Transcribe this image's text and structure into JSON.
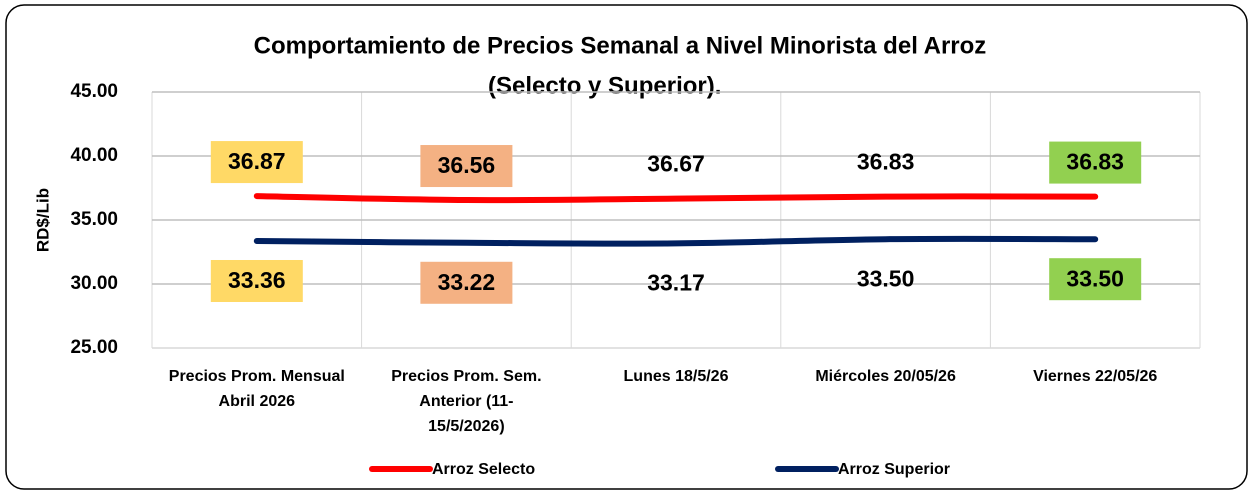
{
  "chart_data": {
    "type": "line",
    "title": [
      "Comportamiento de Precios Semanal a Nivel Minorista del Arroz",
      "(Selecto y Superior)."
    ],
    "y_label": "RD$/Lib",
    "categories": [
      [
        "Precios Prom. Mensual",
        "Abril 2026"
      ],
      [
        "Precios Prom. Sem.",
        "Anterior (11-",
        "15/5/2026)"
      ],
      [
        "Lunes 18/5/26"
      ],
      [
        "Miércoles 20/05/26"
      ],
      [
        "Viernes  22/05/26"
      ]
    ],
    "series": [
      {
        "name": "Arroz Selecto",
        "color": "#ff0000",
        "values": [
          36.87,
          36.56,
          36.67,
          36.83,
          36.83
        ],
        "value_labels": [
          "36.87",
          "36.56",
          "36.67",
          "36.83",
          "36.83"
        ]
      },
      {
        "name": "Arroz Superior",
        "color": "#002060",
        "values": [
          33.36,
          33.22,
          33.17,
          33.5,
          33.5
        ],
        "value_labels": [
          "33.36",
          "33.22",
          "33.17",
          "33.50",
          "33.50"
        ]
      }
    ],
    "label_backgrounds": [
      "#ffd966",
      "#f4b183",
      null,
      null,
      "#92d050"
    ],
    "ylim": [
      25,
      45
    ],
    "yticks": [
      {
        "value": 25,
        "label": "25.00"
      },
      {
        "value": 30,
        "label": "30.00"
      },
      {
        "value": 35,
        "label": "35.00"
      },
      {
        "value": 40,
        "label": "40.00"
      },
      {
        "value": 45,
        "label": "45.00"
      }
    ],
    "grid": true,
    "smooth": true,
    "legend": "bottom"
  }
}
